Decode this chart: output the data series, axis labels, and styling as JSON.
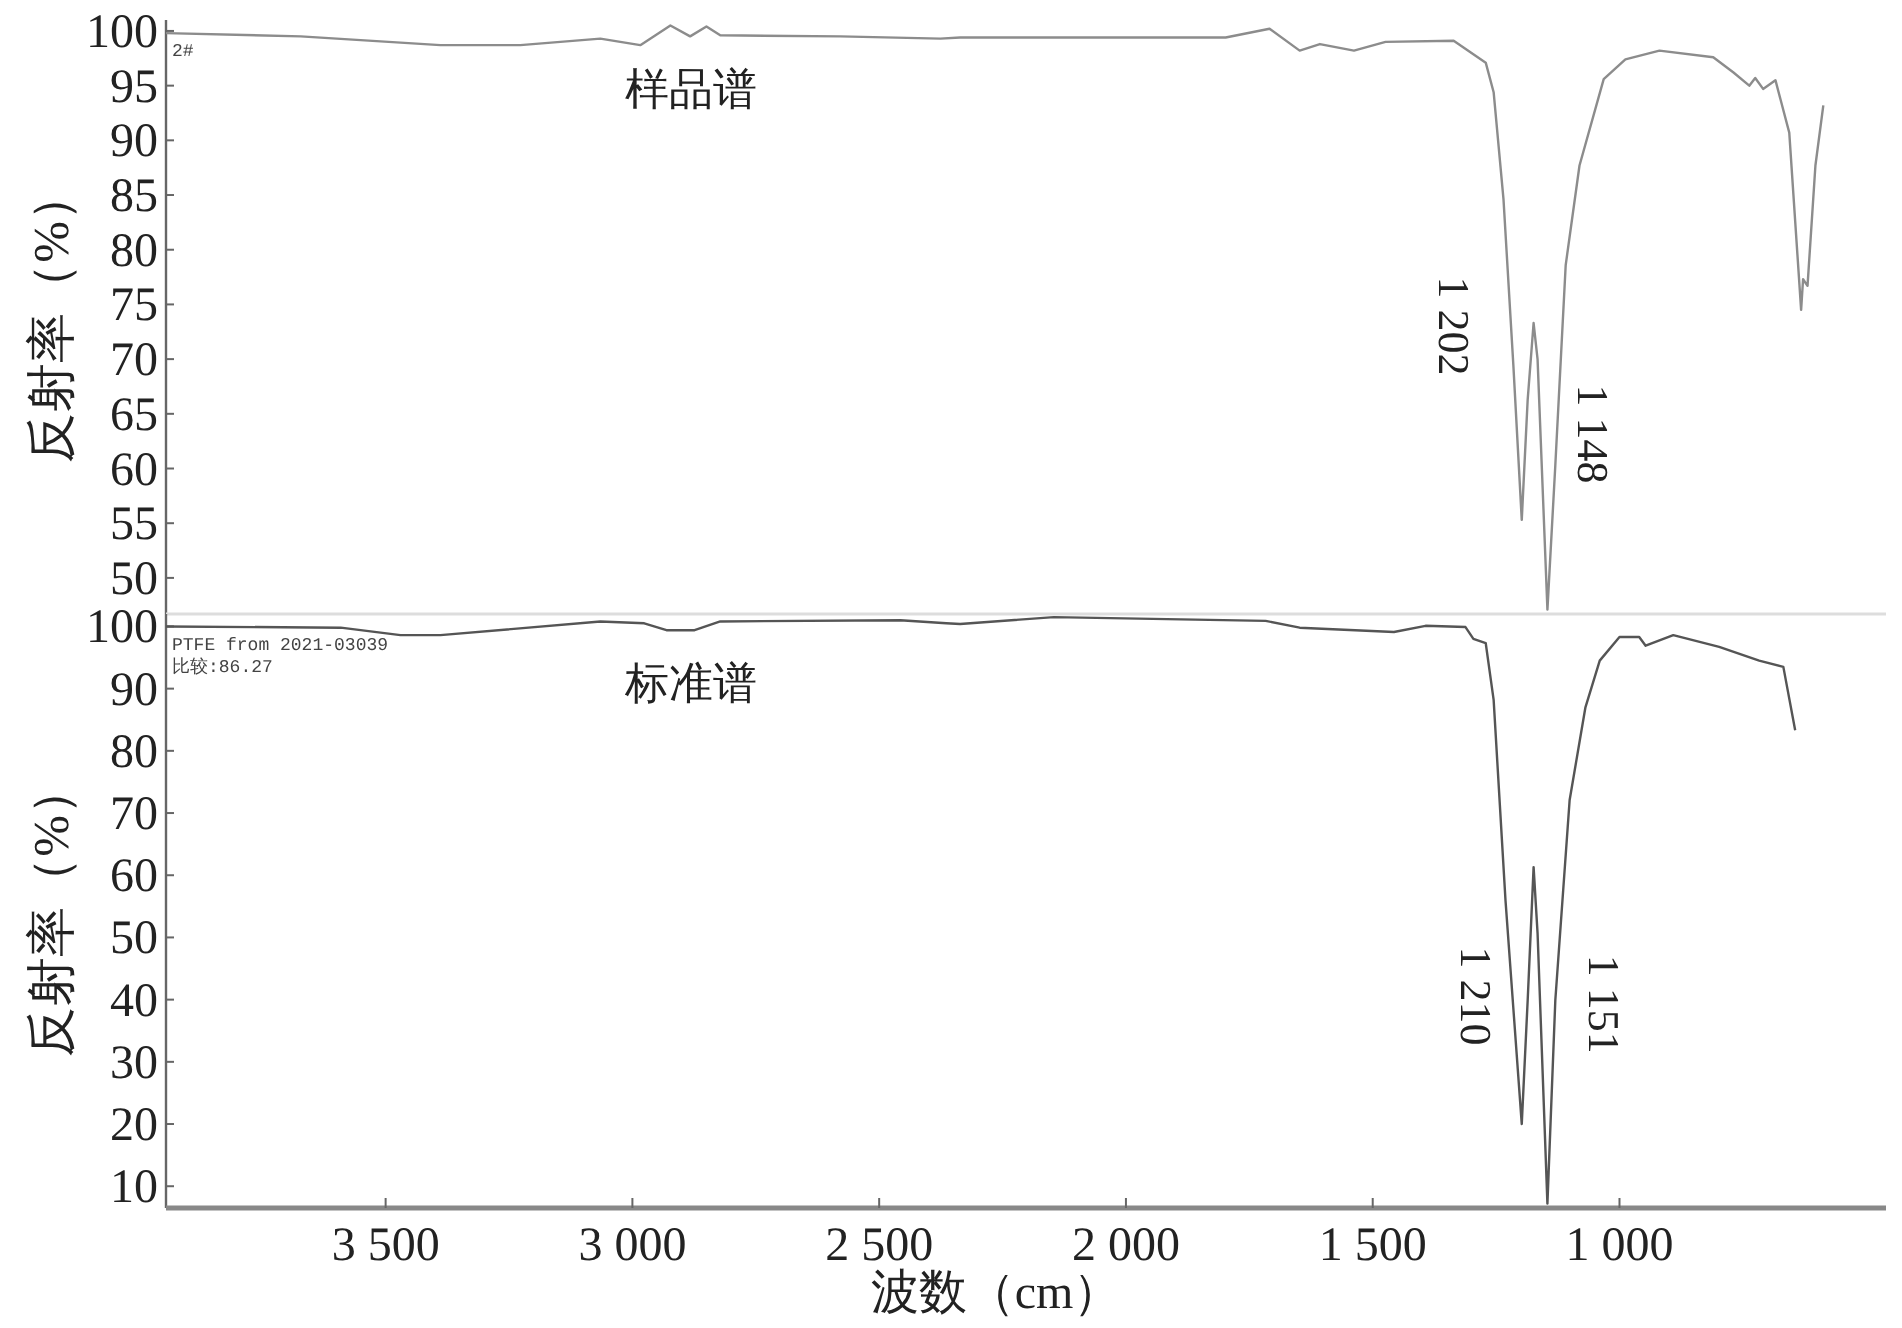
{
  "chart_data": [
    {
      "type": "line",
      "title": "样品谱",
      "ylabel": "反射率（%）",
      "xlim": [
        3945,
        460
      ],
      "ylim": [
        46.7,
        101
      ],
      "yticks": [
        50,
        55,
        60,
        65,
        70,
        75,
        80,
        85,
        90,
        95,
        100
      ],
      "tick_labels": "y",
      "annotations": [
        "2#",
        "1 202",
        "1 148"
      ],
      "series": [
        {
          "color": "#8c8c8c",
          "x": [
            3945,
            3672,
            3389,
            3227,
            3065,
            2984,
            2923,
            2883,
            2850,
            2822,
            2579,
            2376,
            2336,
            1798,
            1709,
            1648,
            1607,
            1538,
            1474,
            1336,
            1271,
            1255,
            1235,
            1215,
            1198,
            1186,
            1174,
            1166,
            1146,
            1130,
            1109,
            1081,
            1032,
            988,
            919,
            810,
            769,
            737,
            725,
            709,
            684,
            656,
            632,
            628,
            619,
            603,
            587
          ],
          "values": [
            99.8,
            99.5,
            98.7,
            98.7,
            99.3,
            98.7,
            100.5,
            99.5,
            100.4,
            99.6,
            99.5,
            99.3,
            99.4,
            99.4,
            100.2,
            98.2,
            98.8,
            98.2,
            99.0,
            99.1,
            97.1,
            94.4,
            84.6,
            69.4,
            55.3,
            66.3,
            73.3,
            70.0,
            47.1,
            60.3,
            78.6,
            87.7,
            95.6,
            97.4,
            98.2,
            97.6,
            96.2,
            95.0,
            95.7,
            94.7,
            95.5,
            90.7,
            74.5,
            77.3,
            76.7,
            87.7,
            93.2
          ]
        }
      ]
    },
    {
      "type": "line",
      "title": "标准谱",
      "ylabel": "反射率（%）",
      "xlabel": "波数（cm）",
      "xlim": [
        3945,
        460
      ],
      "ylim": [
        6.5,
        102
      ],
      "yticks": [
        10,
        20,
        30,
        40,
        50,
        60,
        70,
        80,
        90,
        100
      ],
      "xticks": [
        {
          "value": 3500,
          "label": "3 500"
        },
        {
          "value": 3000,
          "label": "3 000"
        },
        {
          "value": 2500,
          "label": "2 500"
        },
        {
          "value": 2000,
          "label": "2 000"
        },
        {
          "value": 1500,
          "label": "1 500"
        },
        {
          "value": 1000,
          "label": "1 000"
        }
      ],
      "annotations": [
        "PTFE from 2021-03039",
        "比较:86.27",
        "1 210",
        "1 151"
      ],
      "series": [
        {
          "color": "#555555",
          "x": [
            3945,
            3591,
            3470,
            3389,
            3065,
            2976,
            2931,
            2874,
            2822,
            2457,
            2364,
            2336,
            2146,
            1717,
            1648,
            1457,
            1393,
            1312,
            1296,
            1271,
            1255,
            1231,
            1198,
            1186,
            1174,
            1166,
            1146,
            1130,
            1101,
            1069,
            1040,
            1000,
            960,
            947,
            891,
            798,
            717,
            668,
            644
          ],
          "values": [
            100.0,
            99.8,
            98.6,
            98.6,
            100.8,
            100.5,
            99.4,
            99.4,
            100.8,
            101.0,
            100.5,
            100.4,
            101.5,
            100.9,
            99.8,
            99.1,
            100.1,
            99.9,
            98.0,
            97.3,
            88.2,
            56.0,
            20.0,
            39.9,
            61.3,
            50.7,
            7.2,
            39.9,
            72.1,
            87.0,
            94.5,
            98.3,
            98.3,
            96.9,
            98.6,
            96.7,
            94.5,
            93.5,
            83.3
          ]
        }
      ]
    }
  ]
}
